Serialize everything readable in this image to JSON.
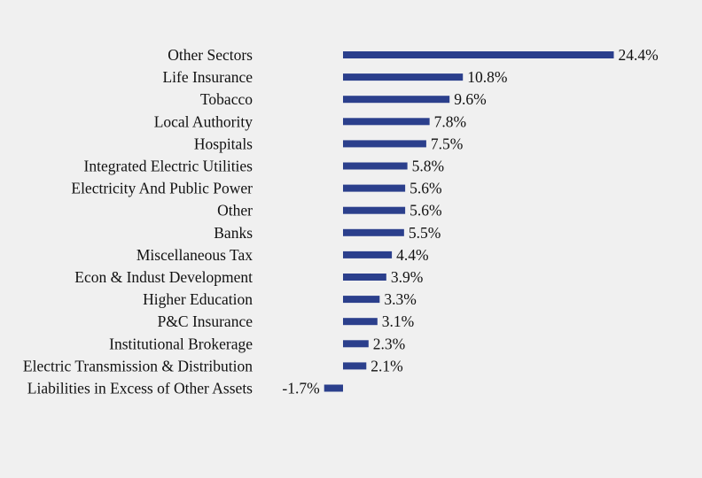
{
  "chart_data": {
    "type": "bar",
    "orientation": "horizontal",
    "title": "",
    "xlabel": "",
    "ylabel": "",
    "grid": false,
    "legend": "none",
    "bar_color": "#2b3f8c",
    "background": "#f0f0f0",
    "categories": [
      "Other Sectors",
      "Life Insurance",
      "Tobacco",
      "Local Authority",
      "Hospitals",
      "Integrated Electric Utilities",
      "Electricity And Public Power",
      "Other",
      "Banks",
      "Miscellaneous Tax",
      "Econ & Indust Development",
      "Higher Education",
      "P&C Insurance",
      "Institutional Brokerage",
      "Electric Transmission & Distribution",
      "Liabilities in Excess of Other Assets"
    ],
    "values": [
      24.4,
      10.8,
      9.6,
      7.8,
      7.5,
      5.8,
      5.6,
      5.6,
      5.5,
      4.4,
      3.9,
      3.3,
      3.1,
      2.3,
      2.1,
      -1.7
    ],
    "value_labels": [
      "24.4%",
      "10.8%",
      "9.6%",
      "7.8%",
      "7.5%",
      "5.8%",
      "5.6%",
      "5.6%",
      "5.5%",
      "4.4%",
      "3.9%",
      "3.3%",
      "3.1%",
      "2.3%",
      "2.1%",
      "-1.7%"
    ]
  }
}
